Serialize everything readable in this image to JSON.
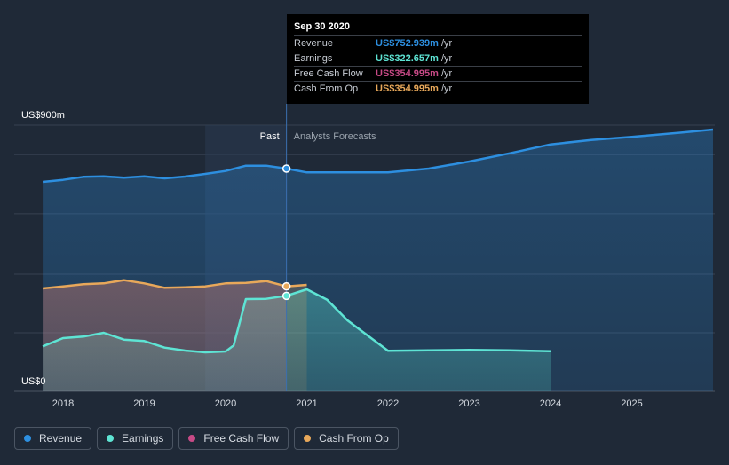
{
  "chart_data": {
    "type": "area",
    "title": "",
    "y_axis": {
      "top_label": "US$900m",
      "bottom_label": "US$0",
      "ylim": [
        0,
        900
      ]
    },
    "x_ticks": [
      "2018",
      "2019",
      "2020",
      "2021",
      "2022",
      "2023",
      "2024",
      "2025"
    ],
    "regions": {
      "past_label": "Past",
      "forecast_label": "Analysts Forecasts",
      "split_date": 2020.75
    },
    "series": [
      {
        "name": "Revenue",
        "color": "#2d8fe0",
        "points": [
          [
            2017.75,
            708
          ],
          [
            2018.0,
            715
          ],
          [
            2018.25,
            725
          ],
          [
            2018.5,
            727
          ],
          [
            2018.75,
            722
          ],
          [
            2019.0,
            727
          ],
          [
            2019.25,
            720
          ],
          [
            2019.5,
            726
          ],
          [
            2019.75,
            735
          ],
          [
            2020.0,
            745
          ],
          [
            2020.25,
            763
          ],
          [
            2020.5,
            763
          ],
          [
            2020.75,
            753
          ],
          [
            2021.0,
            740
          ],
          [
            2021.5,
            740
          ],
          [
            2022.0,
            740
          ],
          [
            2022.5,
            753
          ],
          [
            2023.0,
            777
          ],
          [
            2023.5,
            805
          ],
          [
            2024.0,
            835
          ],
          [
            2024.5,
            850
          ],
          [
            2025.0,
            860
          ],
          [
            2025.5,
            872
          ],
          [
            2026.0,
            885
          ]
        ]
      },
      {
        "name": "Earnings",
        "color": "#5ee4d4",
        "points": [
          [
            2017.75,
            152
          ],
          [
            2018.0,
            180
          ],
          [
            2018.25,
            185
          ],
          [
            2018.5,
            198
          ],
          [
            2018.75,
            175
          ],
          [
            2019.0,
            170
          ],
          [
            2019.25,
            148
          ],
          [
            2019.5,
            138
          ],
          [
            2019.75,
            132
          ],
          [
            2020.0,
            135
          ],
          [
            2020.1,
            155
          ],
          [
            2020.25,
            312
          ],
          [
            2020.5,
            313
          ],
          [
            2020.75,
            323
          ],
          [
            2021.0,
            345
          ],
          [
            2021.25,
            310
          ],
          [
            2021.5,
            240
          ],
          [
            2022.0,
            137
          ],
          [
            2022.5,
            139
          ],
          [
            2023.0,
            140
          ],
          [
            2023.5,
            139
          ],
          [
            2024.0,
            136
          ]
        ]
      },
      {
        "name": "Free Cash Flow",
        "color": "#c84a86",
        "points": [
          [
            2017.75,
            348
          ],
          [
            2018.0,
            355
          ],
          [
            2018.25,
            362
          ],
          [
            2018.5,
            365
          ],
          [
            2018.75,
            376
          ],
          [
            2019.0,
            365
          ],
          [
            2019.25,
            350
          ],
          [
            2019.5,
            352
          ],
          [
            2019.75,
            355
          ],
          [
            2020.0,
            365
          ],
          [
            2020.25,
            367
          ],
          [
            2020.5,
            373
          ],
          [
            2020.75,
            355
          ]
        ]
      },
      {
        "name": "Cash From Op",
        "color": "#e8a85a",
        "points": [
          [
            2017.75,
            348
          ],
          [
            2018.0,
            355
          ],
          [
            2018.25,
            362
          ],
          [
            2018.5,
            365
          ],
          [
            2018.75,
            376
          ],
          [
            2019.0,
            365
          ],
          [
            2019.25,
            350
          ],
          [
            2019.5,
            352
          ],
          [
            2019.75,
            355
          ],
          [
            2020.0,
            365
          ],
          [
            2020.25,
            367
          ],
          [
            2020.5,
            373
          ],
          [
            2020.75,
            355
          ],
          [
            2021.0,
            360
          ]
        ]
      }
    ],
    "hover": {
      "x": 2020.75,
      "markers": [
        "Revenue",
        "Earnings",
        "Cash From Op"
      ]
    }
  },
  "tooltip": {
    "date": "Sep 30 2020",
    "rows": [
      {
        "label": "Revenue",
        "value": "US$752.939m",
        "unit": "/yr",
        "color": "#2d8fe0"
      },
      {
        "label": "Earnings",
        "value": "US$322.657m",
        "unit": "/yr",
        "color": "#5ee4d4"
      },
      {
        "label": "Free Cash Flow",
        "value": "US$354.995m",
        "unit": "/yr",
        "color": "#c84a86"
      },
      {
        "label": "Cash From Op",
        "value": "US$354.995m",
        "unit": "/yr",
        "color": "#e8a85a"
      }
    ]
  },
  "legend": [
    {
      "label": "Revenue",
      "color": "#2d8fe0"
    },
    {
      "label": "Earnings",
      "color": "#5ee4d4"
    },
    {
      "label": "Free Cash Flow",
      "color": "#c84a86"
    },
    {
      "label": "Cash From Op",
      "color": "#e8a85a"
    }
  ]
}
